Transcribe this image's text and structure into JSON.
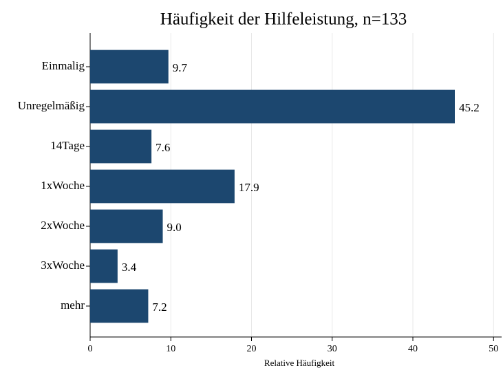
{
  "chart_data": {
    "type": "barh",
    "title": "Häufigkeit der Hilfeleistung, n=133",
    "categories": [
      "Einmalig",
      "Unregelmäßig",
      "14Tage",
      "1xWoche",
      "2xWoche",
      "3xWoche",
      "mehr"
    ],
    "values": [
      9.7,
      45.2,
      7.6,
      17.9,
      9.0,
      3.4,
      7.2
    ],
    "value_labels": [
      "9.7",
      "45.2",
      "7.6",
      "17.9",
      "9.0",
      "3.4",
      "7.2"
    ],
    "color": "#1c476f",
    "xlabel": "Relative Häufigkeit",
    "xlim": [
      0,
      51
    ],
    "xticks": [
      0,
      10,
      20,
      30,
      40,
      50
    ],
    "grid": true
  }
}
